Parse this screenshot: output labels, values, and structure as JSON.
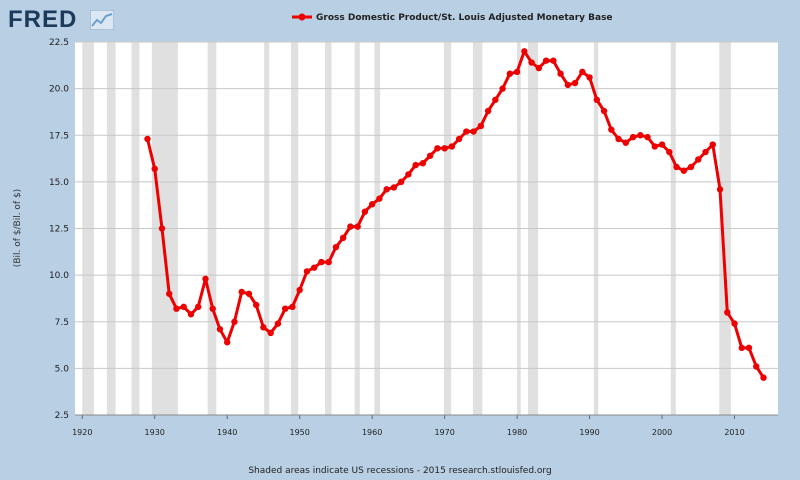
{
  "branding": {
    "logo_text": "FRED"
  },
  "footer": {
    "note": "Shaded areas indicate US recessions - 2015 research.stlouisfed.org"
  },
  "colors": {
    "series": "#ee0000",
    "recession": "#e0e0e0",
    "grid": "#c8c8c8",
    "background": "#b8cfe4"
  },
  "chart_data": {
    "type": "line",
    "title": "",
    "ylabel": "(Bil. of $/Bil. of $)",
    "xlabel": "",
    "xlim": [
      1919,
      2016
    ],
    "ylim": [
      2.5,
      22.5
    ],
    "grid": true,
    "legend_position": "top-center",
    "x_ticks": [
      1920,
      1930,
      1940,
      1950,
      1960,
      1970,
      1980,
      1990,
      2000,
      2010
    ],
    "y_ticks": [
      2.5,
      5.0,
      7.5,
      10.0,
      12.5,
      15.0,
      17.5,
      20.0,
      22.5
    ],
    "y_tick_labels": [
      "2.5",
      "5.0",
      "7.5",
      "10.0",
      "12.5",
      "15.0",
      "17.5",
      "20.0",
      "22.5"
    ],
    "recessions": [
      [
        1920.0,
        1921.6
      ],
      [
        1923.4,
        1924.6
      ],
      [
        1926.8,
        1927.9
      ],
      [
        1929.6,
        1933.2
      ],
      [
        1937.3,
        1938.5
      ],
      [
        1945.1,
        1945.8
      ],
      [
        1948.8,
        1949.8
      ],
      [
        1953.5,
        1954.4
      ],
      [
        1957.6,
        1958.3
      ],
      [
        1960.3,
        1961.1
      ],
      [
        1969.9,
        1970.9
      ],
      [
        1973.9,
        1975.2
      ],
      [
        1980.0,
        1980.5
      ],
      [
        1981.5,
        1982.9
      ],
      [
        1990.6,
        1991.2
      ],
      [
        2001.2,
        2001.9
      ],
      [
        2007.9,
        2009.5
      ]
    ],
    "series": [
      {
        "name": "Gross Domestic Product/St. Louis Adjusted Monetary Base",
        "x": [
          1929,
          1930,
          1931,
          1932,
          1933,
          1934,
          1935,
          1936,
          1937,
          1938,
          1939,
          1940,
          1941,
          1942,
          1943,
          1944,
          1945,
          1946,
          1947,
          1948,
          1949,
          1950,
          1951,
          1952,
          1953,
          1954,
          1955,
          1956,
          1957,
          1958,
          1959,
          1960,
          1961,
          1962,
          1963,
          1964,
          1965,
          1966,
          1967,
          1968,
          1969,
          1970,
          1971,
          1972,
          1973,
          1974,
          1975,
          1976,
          1977,
          1978,
          1979,
          1980,
          1981,
          1982,
          1983,
          1984,
          1985,
          1986,
          1987,
          1988,
          1989,
          1990,
          1991,
          1992,
          1993,
          1994,
          1995,
          1996,
          1997,
          1998,
          1999,
          2000,
          2001,
          2002,
          2003,
          2004,
          2005,
          2006,
          2007,
          2008,
          2009,
          2010,
          2011,
          2012,
          2013,
          2014
        ],
        "values": [
          17.3,
          15.7,
          12.5,
          9.0,
          8.2,
          8.3,
          7.9,
          8.3,
          9.8,
          8.2,
          7.1,
          6.4,
          7.5,
          9.1,
          9.0,
          8.4,
          7.2,
          6.9,
          7.4,
          8.2,
          8.3,
          9.2,
          10.2,
          10.4,
          10.7,
          10.7,
          11.5,
          12.0,
          12.6,
          12.6,
          13.4,
          13.8,
          14.1,
          14.6,
          14.7,
          15.0,
          15.4,
          15.9,
          16.0,
          16.4,
          16.8,
          16.8,
          16.9,
          17.3,
          17.7,
          17.7,
          18.0,
          18.8,
          19.4,
          20.0,
          20.8,
          20.9,
          22.0,
          21.4,
          21.1,
          21.5,
          21.5,
          20.8,
          20.2,
          20.3,
          20.9,
          20.6,
          19.4,
          18.8,
          17.8,
          17.3,
          17.1,
          17.4,
          17.5,
          17.4,
          16.9,
          17.0,
          16.6,
          15.8,
          15.6,
          15.8,
          16.2,
          16.6,
          17.0,
          14.6,
          8.0,
          7.4,
          6.1,
          6.1,
          5.1,
          4.5
        ]
      }
    ]
  }
}
